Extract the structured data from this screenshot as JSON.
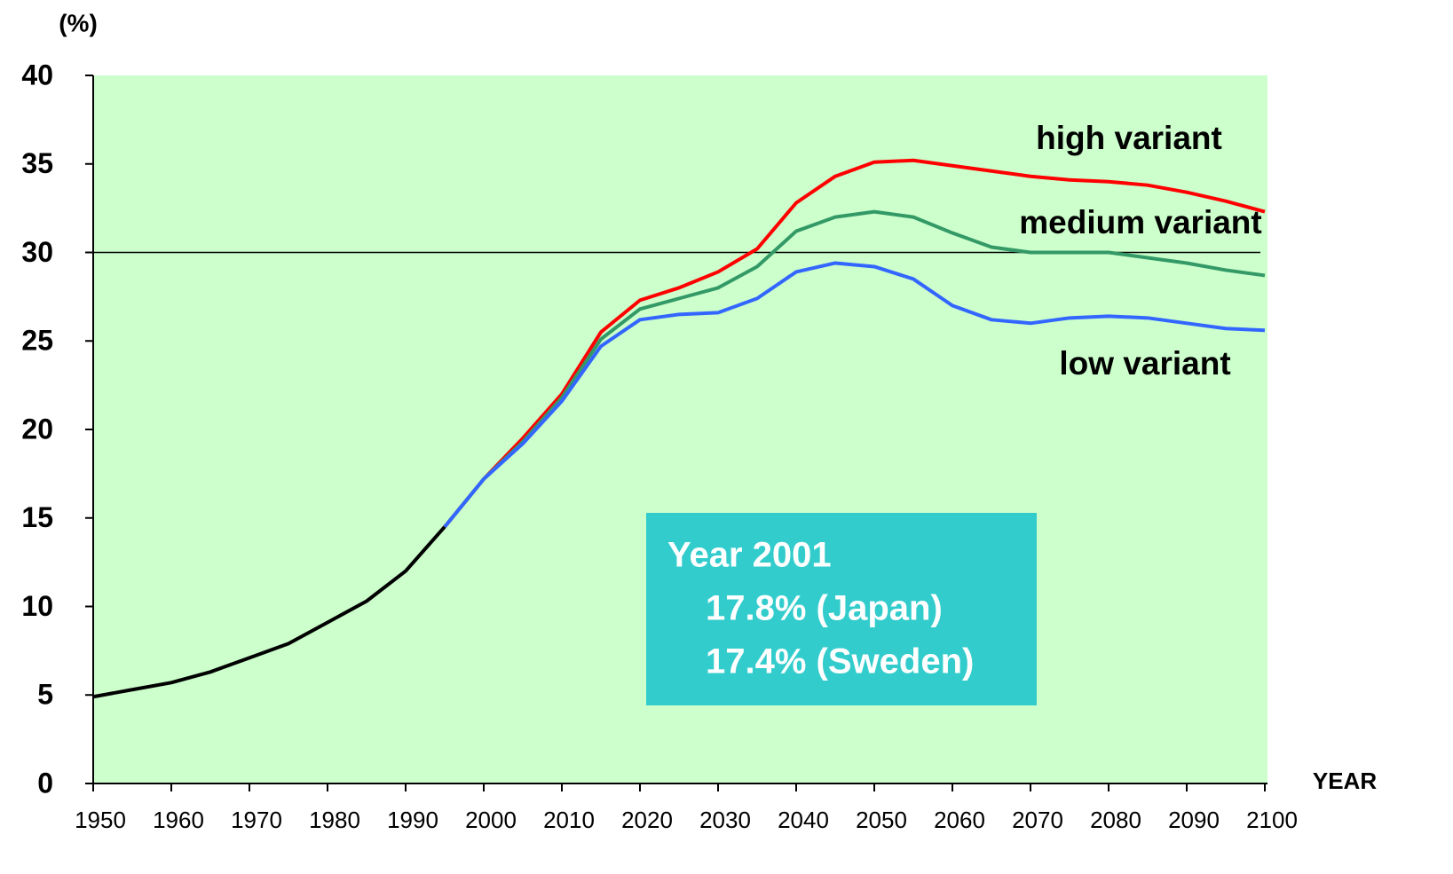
{
  "chart_data": {
    "type": "line",
    "y_label": "(%)",
    "x_label": "YEAR",
    "x": [
      1950,
      1955,
      1960,
      1965,
      1970,
      1975,
      1980,
      1985,
      1990,
      1995,
      2000,
      2005,
      2010,
      2015,
      2020,
      2025,
      2030,
      2035,
      2040,
      2045,
      2050,
      2055,
      2060,
      2065,
      2070,
      2075,
      2080,
      2085,
      2090,
      2095,
      2100
    ],
    "series": [
      {
        "color": "#000000",
        "values": [
          4.9,
          5.3,
          5.7,
          6.3,
          7.1,
          7.9,
          9.1,
          10.3,
          12.0,
          14.5,
          null,
          null,
          null,
          null,
          null,
          null,
          null,
          null,
          null,
          null,
          null,
          null,
          null,
          null,
          null,
          null,
          null,
          null,
          null,
          null,
          null
        ]
      },
      {
        "name": "high variant",
        "color": "#ff0000",
        "values": [
          null,
          null,
          null,
          null,
          null,
          null,
          null,
          null,
          null,
          14.5,
          17.2,
          19.5,
          22.0,
          25.5,
          27.3,
          28.0,
          28.9,
          30.2,
          32.8,
          34.3,
          35.1,
          35.2,
          34.9,
          34.6,
          34.3,
          34.1,
          34.0,
          33.8,
          33.4,
          32.9,
          32.3
        ]
      },
      {
        "name": "medium variant",
        "color": "#339966",
        "values": [
          null,
          null,
          null,
          null,
          null,
          null,
          null,
          null,
          null,
          14.5,
          17.2,
          19.3,
          21.8,
          25.1,
          26.8,
          27.4,
          28.0,
          29.2,
          31.2,
          32.0,
          32.3,
          32.0,
          31.1,
          30.3,
          30.0,
          30.0,
          30.0,
          29.7,
          29.4,
          29.0,
          28.7
        ]
      },
      {
        "name": "low variant",
        "color": "#3366ff",
        "values": [
          null,
          null,
          null,
          null,
          null,
          null,
          null,
          null,
          null,
          14.5,
          17.2,
          19.2,
          21.6,
          24.7,
          26.2,
          26.5,
          26.6,
          27.4,
          28.9,
          29.4,
          29.2,
          28.5,
          27.0,
          26.2,
          26.0,
          26.3,
          26.4,
          26.3,
          26.0,
          25.7,
          25.6
        ]
      }
    ],
    "reference_line": 30,
    "annotation": [
      "Year 2001",
      "17.8% (Japan)",
      "17.4% (Sweden)"
    ],
    "xlim": [
      1950,
      2100
    ],
    "ylim": [
      0,
      40
    ],
    "xticks": [
      1950,
      1960,
      1970,
      1980,
      1990,
      2000,
      2010,
      2020,
      2030,
      2040,
      2050,
      2060,
      2070,
      2080,
      2090,
      2100
    ],
    "yticks": [
      0,
      5,
      10,
      15,
      20,
      25,
      30,
      35,
      40
    ],
    "plot_background": "#ccffcc"
  }
}
